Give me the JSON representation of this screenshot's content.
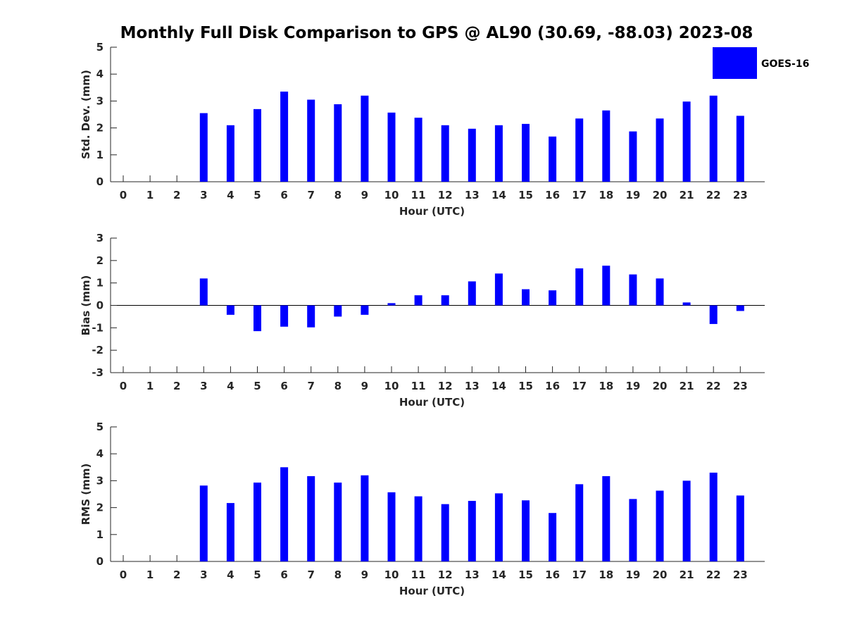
{
  "title": "Monthly Full Disk Comparison to GPS @ AL90 (30.69, -88.03) 2023-08",
  "legend": {
    "label": "GOES-16",
    "color": "#0000ff"
  },
  "chart_data": [
    {
      "type": "bar",
      "xlabel": "Hour (UTC)",
      "ylabel": "Std. Dev. (mm)",
      "ylim": [
        0,
        5
      ],
      "yticks": [
        "0",
        "1",
        "2",
        "3",
        "4",
        "5"
      ],
      "categories": [
        "0",
        "1",
        "2",
        "3",
        "4",
        "5",
        "6",
        "7",
        "8",
        "9",
        "10",
        "11",
        "12",
        "13",
        "14",
        "15",
        "16",
        "17",
        "18",
        "19",
        "20",
        "21",
        "22",
        "23"
      ],
      "series": [
        {
          "name": "GOES-16",
          "color": "#0000ff",
          "values": [
            null,
            null,
            null,
            2.55,
            2.1,
            2.7,
            3.35,
            3.05,
            2.88,
            3.2,
            2.57,
            2.38,
            2.1,
            1.97,
            2.1,
            2.15,
            1.68,
            2.35,
            2.65,
            1.87,
            2.35,
            2.98,
            3.2,
            2.45
          ]
        }
      ],
      "legend": "top-right",
      "grid": false
    },
    {
      "type": "bar",
      "xlabel": "Hour (UTC)",
      "ylabel": "Bias (mm)",
      "ylim": [
        -3,
        3
      ],
      "yticks": [
        "-3",
        "-2",
        "-1",
        "0",
        "1",
        "2",
        "3"
      ],
      "categories": [
        "0",
        "1",
        "2",
        "3",
        "4",
        "5",
        "6",
        "7",
        "8",
        "9",
        "10",
        "11",
        "12",
        "13",
        "14",
        "15",
        "16",
        "17",
        "18",
        "19",
        "20",
        "21",
        "22",
        "23"
      ],
      "series": [
        {
          "name": "GOES-16",
          "color": "#0000ff",
          "values": [
            null,
            null,
            null,
            1.2,
            -0.42,
            -1.15,
            -0.95,
            -0.98,
            -0.5,
            -0.42,
            0.1,
            0.45,
            0.45,
            1.07,
            1.42,
            0.72,
            0.67,
            1.65,
            1.77,
            1.38,
            1.2,
            0.13,
            -0.83,
            -0.25
          ]
        }
      ],
      "grid": false
    },
    {
      "type": "bar",
      "xlabel": "Hour (UTC)",
      "ylabel": "RMS (mm)",
      "ylim": [
        0,
        5
      ],
      "yticks": [
        "0",
        "1",
        "2",
        "3",
        "4",
        "5"
      ],
      "categories": [
        "0",
        "1",
        "2",
        "3",
        "4",
        "5",
        "6",
        "7",
        "8",
        "9",
        "10",
        "11",
        "12",
        "13",
        "14",
        "15",
        "16",
        "17",
        "18",
        "19",
        "20",
        "21",
        "22",
        "23"
      ],
      "series": [
        {
          "name": "GOES-16",
          "color": "#0000ff",
          "values": [
            null,
            null,
            null,
            2.82,
            2.17,
            2.93,
            3.5,
            3.17,
            2.93,
            3.2,
            2.57,
            2.42,
            2.13,
            2.25,
            2.53,
            2.27,
            1.8,
            2.87,
            3.17,
            2.32,
            2.63,
            3.0,
            3.3,
            2.45
          ]
        }
      ],
      "grid": false
    }
  ]
}
